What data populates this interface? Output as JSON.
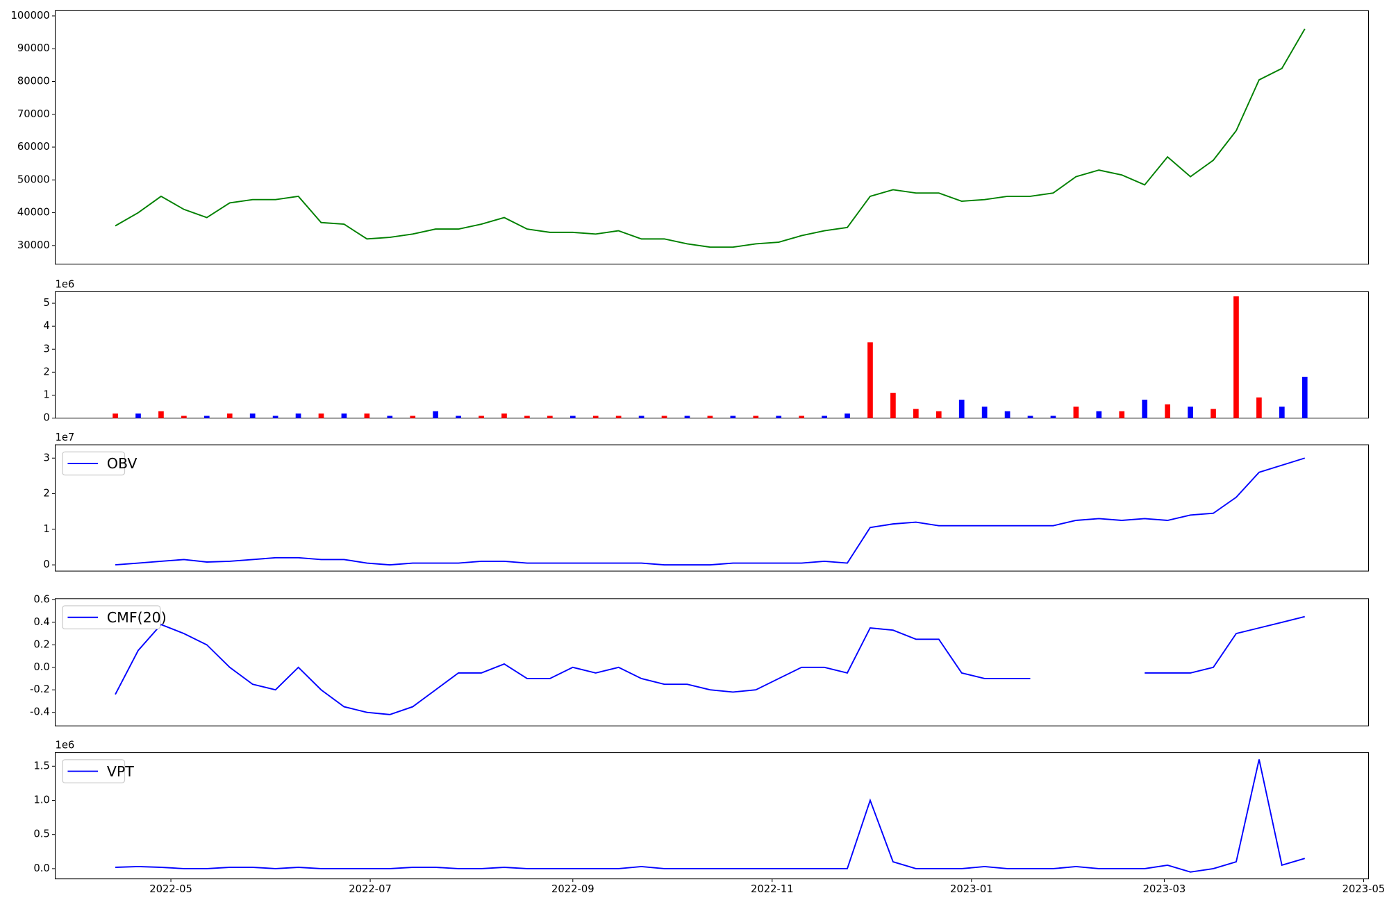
{
  "chart_data": [
    {
      "type": "line",
      "color": "#008000",
      "x": [
        -17,
        -10,
        -3,
        4,
        11,
        18,
        25,
        32,
        39,
        46,
        53,
        60,
        67,
        74,
        81,
        88,
        95,
        102,
        109,
        116,
        123,
        130,
        137,
        144,
        151,
        158,
        165,
        172,
        179,
        186,
        193,
        200,
        207,
        214,
        221,
        228,
        235,
        242,
        249,
        256,
        263,
        270,
        277,
        284,
        291,
        298,
        305,
        312,
        319,
        326,
        333,
        340,
        347
      ],
      "values": [
        36000,
        40000,
        45000,
        41000,
        38500,
        43000,
        44000,
        44000,
        45000,
        37000,
        36500,
        32000,
        32500,
        33500,
        35000,
        35000,
        36500,
        38500,
        35000,
        34000,
        34000,
        33500,
        34500,
        32000,
        32000,
        30500,
        29500,
        29500,
        30500,
        31000,
        33000,
        34500,
        35500,
        45000,
        47000,
        46000,
        46000,
        43500,
        44000,
        45000,
        45000,
        46000,
        51000,
        53000,
        51500,
        48500,
        57000,
        51000,
        56000,
        65000,
        80500,
        84000,
        96000
      ],
      "xlim": [
        -35.4,
        366.5
      ],
      "ylim": [
        24300,
        101600
      ],
      "yticks": [
        30000,
        40000,
        50000,
        60000,
        70000,
        80000,
        90000,
        100000
      ]
    },
    {
      "type": "bar",
      "offset_text": "1e6",
      "x": [
        -17,
        -10,
        -3,
        4,
        11,
        18,
        25,
        32,
        39,
        46,
        53,
        60,
        67,
        74,
        81,
        88,
        95,
        102,
        109,
        116,
        123,
        130,
        137,
        144,
        151,
        158,
        165,
        172,
        179,
        186,
        193,
        200,
        207,
        214,
        221,
        228,
        235,
        242,
        249,
        256,
        263,
        270,
        277,
        284,
        291,
        298,
        305,
        312,
        319,
        326,
        333,
        340,
        347
      ],
      "values": [
        0.2,
        0.2,
        0.3,
        0.1,
        0.1,
        0.2,
        0.2,
        0.1,
        0.2,
        0.2,
        0.2,
        0.2,
        0.1,
        0.1,
        0.3,
        0.1,
        0.1,
        0.2,
        0.1,
        0.1,
        0.1,
        0.1,
        0.1,
        0.1,
        0.1,
        0.1,
        0.1,
        0.1,
        0.1,
        0.1,
        0.1,
        0.1,
        0.2,
        3.3,
        1.1,
        0.4,
        0.3,
        0.8,
        0.5,
        0.3,
        0.1,
        0.1,
        0.5,
        0.3,
        0.3,
        0.8,
        0.6,
        0.5,
        0.4,
        5.3,
        0.9,
        0.5,
        1.8
      ],
      "colors": [
        "#ff0000",
        "#0000ff",
        "#ff0000",
        "#ff0000",
        "#0000ff",
        "#ff0000",
        "#0000ff",
        "#0000ff",
        "#0000ff",
        "#ff0000",
        "#0000ff",
        "#ff0000",
        "#0000ff",
        "#ff0000",
        "#0000ff",
        "#0000ff",
        "#ff0000",
        "#ff0000",
        "#ff0000",
        "#ff0000",
        "#0000ff",
        "#ff0000",
        "#ff0000",
        "#0000ff",
        "#ff0000",
        "#0000ff",
        "#ff0000",
        "#0000ff",
        "#ff0000",
        "#0000ff",
        "#ff0000",
        "#0000ff",
        "#0000ff",
        "#ff0000",
        "#ff0000",
        "#ff0000",
        "#ff0000",
        "#0000ff",
        "#0000ff",
        "#0000ff",
        "#0000ff",
        "#0000ff",
        "#ff0000",
        "#0000ff",
        "#ff0000",
        "#0000ff",
        "#ff0000",
        "#0000ff",
        "#ff0000",
        "#ff0000",
        "#ff0000",
        "#0000ff",
        "#0000ff"
      ],
      "xlim": [
        -35.4,
        366.5
      ],
      "ylim": [
        0,
        5.5
      ],
      "yticks": [
        0,
        1,
        2,
        3,
        4,
        5
      ]
    },
    {
      "type": "line",
      "offset_text": "1e7",
      "legend": "upper left",
      "x": [
        -17,
        -10,
        -3,
        4,
        11,
        18,
        25,
        32,
        39,
        46,
        53,
        60,
        67,
        74,
        81,
        88,
        95,
        102,
        109,
        116,
        123,
        130,
        137,
        144,
        151,
        158,
        165,
        172,
        179,
        186,
        193,
        200,
        207,
        214,
        221,
        228,
        235,
        242,
        249,
        256,
        263,
        270,
        277,
        284,
        291,
        298,
        305,
        312,
        319,
        326,
        333,
        340,
        347
      ],
      "series": [
        {
          "name": "OBV",
          "color": "#0000ff",
          "values": [
            0,
            0.05,
            0.1,
            0.15,
            0.08,
            0.1,
            0.15,
            0.2,
            0.2,
            0.15,
            0.15,
            0.05,
            0,
            0.05,
            0.05,
            0.05,
            0.1,
            0.1,
            0.05,
            0.05,
            0.05,
            0.05,
            0.05,
            0.05,
            0,
            0,
            0,
            0.05,
            0.05,
            0.05,
            0.05,
            0.1,
            0.05,
            1.05,
            1.15,
            1.2,
            1.1,
            1.1,
            1.1,
            1.1,
            1.1,
            1.1,
            1.25,
            1.3,
            1.25,
            1.3,
            1.25,
            1.4,
            1.45,
            1.9,
            2.6,
            2.8,
            3.0
          ]
        }
      ],
      "xlim": [
        -35.4,
        366.5
      ],
      "ylim": [
        -0.175,
        3.375
      ],
      "yticks": [
        0,
        1,
        2,
        3
      ]
    },
    {
      "type": "line",
      "legend": "upper left",
      "x": [
        -17,
        -10,
        -3,
        4,
        11,
        18,
        25,
        32,
        39,
        46,
        53,
        60,
        67,
        74,
        81,
        88,
        95,
        102,
        109,
        116,
        123,
        130,
        137,
        144,
        151,
        158,
        165,
        172,
        179,
        186,
        193,
        200,
        207,
        214,
        221,
        228,
        235,
        242,
        249,
        256,
        263,
        270,
        277,
        284,
        291,
        298,
        305,
        312,
        319,
        326,
        333,
        340,
        347
      ],
      "series": [
        {
          "name": "CMF(20)",
          "color": "#0000ff",
          "values": [
            -0.24,
            0.15,
            0.38,
            0.3,
            0.2,
            0.0,
            -0.15,
            -0.2,
            0.0,
            -0.2,
            -0.35,
            -0.4,
            -0.42,
            -0.35,
            -0.2,
            -0.05,
            -0.05,
            0.03,
            -0.1,
            -0.1,
            0.0,
            -0.05,
            0.0,
            -0.1,
            -0.15,
            -0.15,
            -0.2,
            -0.22,
            -0.2,
            -0.1,
            0.0,
            0.0,
            -0.05,
            0.35,
            0.33,
            0.25,
            0.25,
            -0.05,
            -0.1,
            -0.1,
            -0.1,
            null,
            null,
            null,
            null,
            -0.05,
            -0.05,
            -0.05,
            0.0,
            0.3,
            0.35,
            0.4,
            0.45
          ]
        }
      ],
      "xlim": [
        -35.4,
        366.5
      ],
      "ylim": [
        -0.52,
        0.61
      ],
      "yticks": [
        -0.4,
        -0.2,
        {
          "value": 0,
          "label": "0.0"
        },
        0.2,
        0.4,
        0.6
      ]
    },
    {
      "type": "line",
      "offset_text": "1e6",
      "legend": "upper left",
      "x": [
        -17,
        -10,
        -3,
        4,
        11,
        18,
        25,
        32,
        39,
        46,
        53,
        60,
        67,
        74,
        81,
        88,
        95,
        102,
        109,
        116,
        123,
        130,
        137,
        144,
        151,
        158,
        165,
        172,
        179,
        186,
        193,
        200,
        207,
        214,
        221,
        228,
        235,
        242,
        249,
        256,
        263,
        270,
        277,
        284,
        291,
        298,
        305,
        312,
        319,
        326,
        333,
        340,
        347
      ],
      "series": [
        {
          "name": "VPT",
          "color": "#0000ff",
          "values": [
            0.02,
            0.03,
            0.02,
            0,
            0,
            0.02,
            0.02,
            0,
            0.02,
            0,
            0,
            0,
            0,
            0.02,
            0.02,
            0,
            0,
            0.02,
            0,
            0,
            0,
            0,
            0,
            0.03,
            0,
            0,
            0,
            0,
            0,
            0,
            0,
            0,
            0,
            1.0,
            0.1,
            0,
            0,
            0,
            0.03,
            0,
            0,
            0,
            0.03,
            0,
            0,
            0,
            0.05,
            -0.05,
            0,
            0.1,
            1.6,
            0.05,
            0.15
          ]
        }
      ],
      "xlim": [
        -35.4,
        366.5
      ],
      "ylim": [
        -0.15,
        1.7
      ],
      "yticks": [
        {
          "value": 0,
          "label": "0.0"
        },
        0.5,
        {
          "value": 1,
          "label": "1.0"
        },
        1.5
      ],
      "xticks": [
        {
          "value": 0,
          "label": "2022-05"
        },
        {
          "value": 61,
          "label": "2022-07"
        },
        {
          "value": 123,
          "label": "2022-09"
        },
        {
          "value": 184,
          "label": "2022-11"
        },
        {
          "value": 245,
          "label": "2023-01"
        },
        {
          "value": 304,
          "label": "2023-03"
        },
        {
          "value": 365,
          "label": "2023-05"
        }
      ]
    }
  ]
}
